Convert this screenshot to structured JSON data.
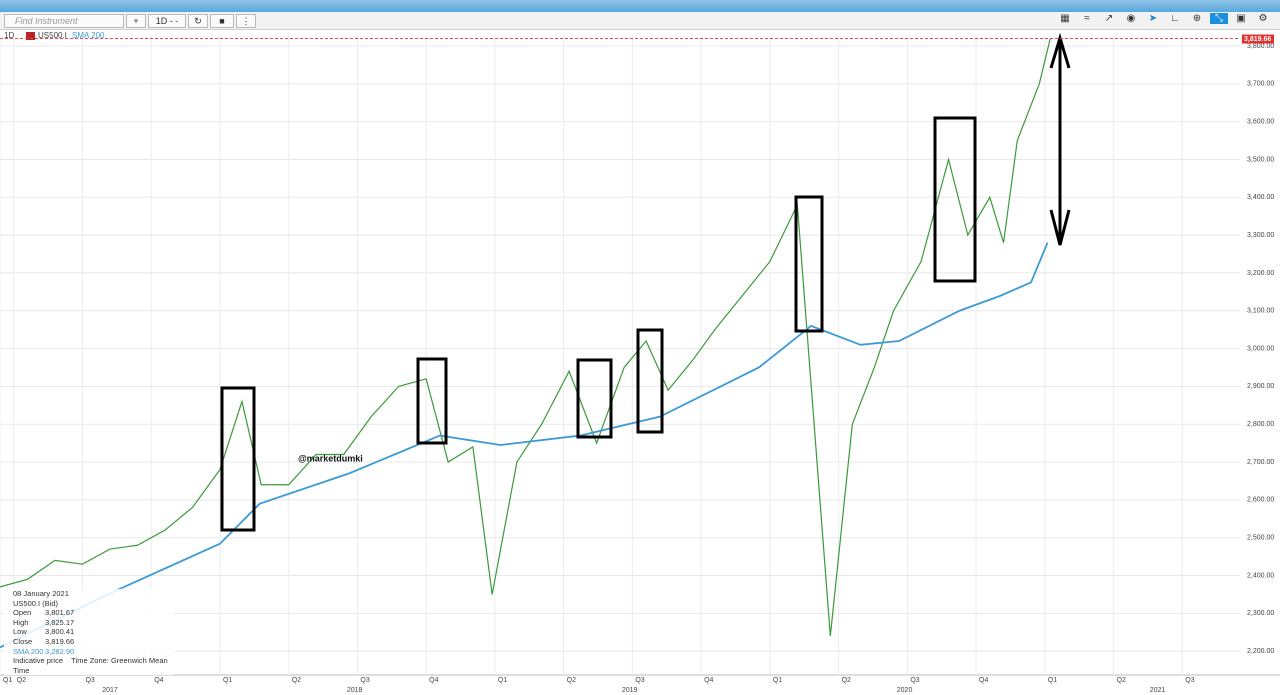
{
  "toolbar": {
    "search_placeholder": "Find Instrument",
    "timeframe_button": "1D - -"
  },
  "chart_header": {
    "timeframe": "1D",
    "instrument": "US500.I",
    "indicator": "SMA 200"
  },
  "watermark": "@marketdumki",
  "chart_data": {
    "type": "line",
    "ylim": [
      2137,
      3829
    ],
    "yticks": [
      {
        "value": 2200,
        "label": "2,200.00"
      },
      {
        "value": 2300,
        "label": "2,300.00"
      },
      {
        "value": 2400,
        "label": "2,400.00"
      },
      {
        "value": 2500,
        "label": "2,500.00"
      },
      {
        "value": 2600,
        "label": "2,600.00"
      },
      {
        "value": 2700,
        "label": "2,700.00"
      },
      {
        "value": 2800,
        "label": "2,800.00"
      },
      {
        "value": 2900,
        "label": "2,900.00"
      },
      {
        "value": 3000,
        "label": "3,000.00"
      },
      {
        "value": 3100,
        "label": "3,100.00"
      },
      {
        "value": 3200,
        "label": "3,200.00"
      },
      {
        "value": 3300,
        "label": "3,300.00"
      },
      {
        "value": 3400,
        "label": "3,400.00"
      },
      {
        "value": 3500,
        "label": "3,500.00"
      },
      {
        "value": 3600,
        "label": "3,600.00"
      },
      {
        "value": 3700,
        "label": "3,700.00"
      },
      {
        "value": 3800,
        "label": "3,800.00"
      }
    ],
    "xlim": [
      2017.2,
      2021.71
    ],
    "xticks": [
      {
        "value": 2017.2,
        "label": "Q1"
      },
      {
        "value": 2017.25,
        "label": "Q2"
      },
      {
        "value": 2017.5,
        "label": "Q3"
      },
      {
        "value": 2017.75,
        "label": "Q4"
      },
      {
        "value": 2018,
        "label": "Q1"
      },
      {
        "value": 2018.25,
        "label": "Q2"
      },
      {
        "value": 2018.5,
        "label": "Q3"
      },
      {
        "value": 2018.75,
        "label": "Q4"
      },
      {
        "value": 2019,
        "label": "Q1"
      },
      {
        "value": 2019.25,
        "label": "Q2"
      },
      {
        "value": 2019.5,
        "label": "Q3"
      },
      {
        "value": 2019.75,
        "label": "Q4"
      },
      {
        "value": 2020,
        "label": "Q1"
      },
      {
        "value": 2020.25,
        "label": "Q2"
      },
      {
        "value": 2020.5,
        "label": "Q3"
      },
      {
        "value": 2020.75,
        "label": "Q4"
      },
      {
        "value": 2021,
        "label": "Q1"
      },
      {
        "value": 2021.25,
        "label": "Q2"
      },
      {
        "value": 2021.5,
        "label": "Q3"
      }
    ],
    "year_labels": [
      {
        "value": 2017.6,
        "label": "2017"
      },
      {
        "value": 2018.49,
        "label": "2018"
      },
      {
        "value": 2019.49,
        "label": "2019"
      },
      {
        "value": 2020.49,
        "label": "2020"
      },
      {
        "value": 2021.41,
        "label": "2021"
      }
    ],
    "last_price": {
      "value": 3819.66,
      "label": "3,819.66"
    },
    "grid": true,
    "series": [
      {
        "name": "US500.I",
        "color": "#3a9a3a",
        "x": [
          2017.2,
          2017.3,
          2017.4,
          2017.5,
          2017.6,
          2017.7,
          2017.8,
          2017.9,
          2018.0,
          2018.08,
          2018.15,
          2018.25,
          2018.35,
          2018.45,
          2018.55,
          2018.65,
          2018.75,
          2018.83,
          2018.92,
          2018.99,
          2019.08,
          2019.17,
          2019.27,
          2019.37,
          2019.47,
          2019.55,
          2019.63,
          2019.72,
          2019.8,
          2019.9,
          2020.0,
          2020.1,
          2020.22,
          2020.3,
          2020.38,
          2020.45,
          2020.55,
          2020.65,
          2020.72,
          2020.8,
          2020.85,
          2020.9,
          2020.98,
          2021.02
        ],
        "values": [
          2370,
          2390,
          2440,
          2430,
          2470,
          2480,
          2520,
          2580,
          2680,
          2860,
          2640,
          2640,
          2720,
          2720,
          2820,
          2900,
          2920,
          2700,
          2740,
          2350,
          2700,
          2800,
          2940,
          2750,
          2950,
          3020,
          2890,
          2970,
          3050,
          3140,
          3230,
          3380,
          2240,
          2800,
          2950,
          3100,
          3230,
          3500,
          3300,
          3400,
          3280,
          3550,
          3700,
          3820
        ]
      },
      {
        "name": "SMA 200",
        "color": "#3c9ad6",
        "x": [
          2017.2,
          2017.6,
          2018.0,
          2018.145,
          2018.47,
          2018.8,
          2019.02,
          2019.31,
          2019.6,
          2019.96,
          2020.15,
          2020.33,
          2020.47,
          2020.69,
          2020.84,
          2020.95,
          2021.01
        ],
        "values": [
          2210,
          2353,
          2484,
          2590,
          2670,
          2770,
          2745,
          2770,
          2820,
          2950,
          3060,
          3010,
          3020,
          3100,
          3140,
          3175,
          3280
        ]
      }
    ]
  },
  "info_panel": {
    "date": "08 January 2021",
    "instrument": "US500.I (Bid)",
    "rows": [
      [
        "Open",
        "3,801.67"
      ],
      [
        "High",
        "3,825.17"
      ],
      [
        "Low",
        "3,800.41"
      ],
      [
        "Close",
        "3,819.66"
      ],
      [
        "SMA 200",
        "3,282.90"
      ]
    ],
    "footer": [
      "Indicative price",
      "Time Zone: Greenwich Mean Time"
    ]
  }
}
